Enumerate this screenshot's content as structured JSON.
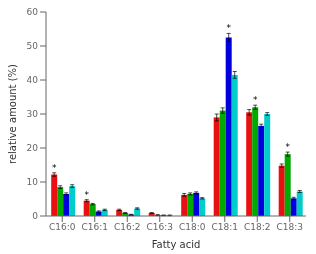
{
  "chart_data": {
    "type": "bar",
    "xlabel": "Fatty acid",
    "ylabel": "relative amount (%)",
    "categories": [
      "C16:0",
      "C16:1",
      "C16:2",
      "C16:3",
      "C18:0",
      "C18:1",
      "C18:2",
      "C18:3"
    ],
    "series": [
      {
        "color": "#e81010",
        "values": [
          12.2,
          4.5,
          1.8,
          0.9,
          6.2,
          29.0,
          30.5,
          14.8
        ],
        "errors": [
          0.5,
          0.3,
          0.2,
          0.1,
          0.4,
          1.0,
          0.8,
          0.5
        ]
      },
      {
        "color": "#00aa00",
        "values": [
          8.5,
          3.5,
          0.9,
          0.3,
          6.5,
          31.0,
          32.0,
          18.2
        ],
        "errors": [
          0.4,
          0.2,
          0.1,
          0.1,
          0.3,
          0.8,
          0.6,
          0.6
        ]
      },
      {
        "color": "#0000dd",
        "values": [
          6.5,
          1.3,
          0.4,
          0.2,
          6.8,
          52.5,
          26.5,
          5.2
        ],
        "errors": [
          0.3,
          0.2,
          0.1,
          0.1,
          0.3,
          1.2,
          0.5,
          0.3
        ]
      },
      {
        "color": "#00cccc",
        "values": [
          8.8,
          1.8,
          2.2,
          0.2,
          5.2,
          41.5,
          30.0,
          7.2
        ],
        "errors": [
          0.4,
          0.2,
          0.2,
          0.1,
          0.2,
          1.0,
          0.4,
          0.3
        ]
      }
    ],
    "ylim": [
      0,
      60
    ],
    "yticks": [
      0,
      10,
      20,
      30,
      40,
      50,
      60
    ],
    "grid": false,
    "annotations": [
      {
        "text": "*",
        "category": "C16:0"
      },
      {
        "text": "*",
        "category": "C16:1"
      },
      {
        "text": "*",
        "category": "C18:1"
      },
      {
        "text": "*",
        "category": "C18:2"
      },
      {
        "text": "*",
        "category": "C18:3"
      }
    ]
  }
}
